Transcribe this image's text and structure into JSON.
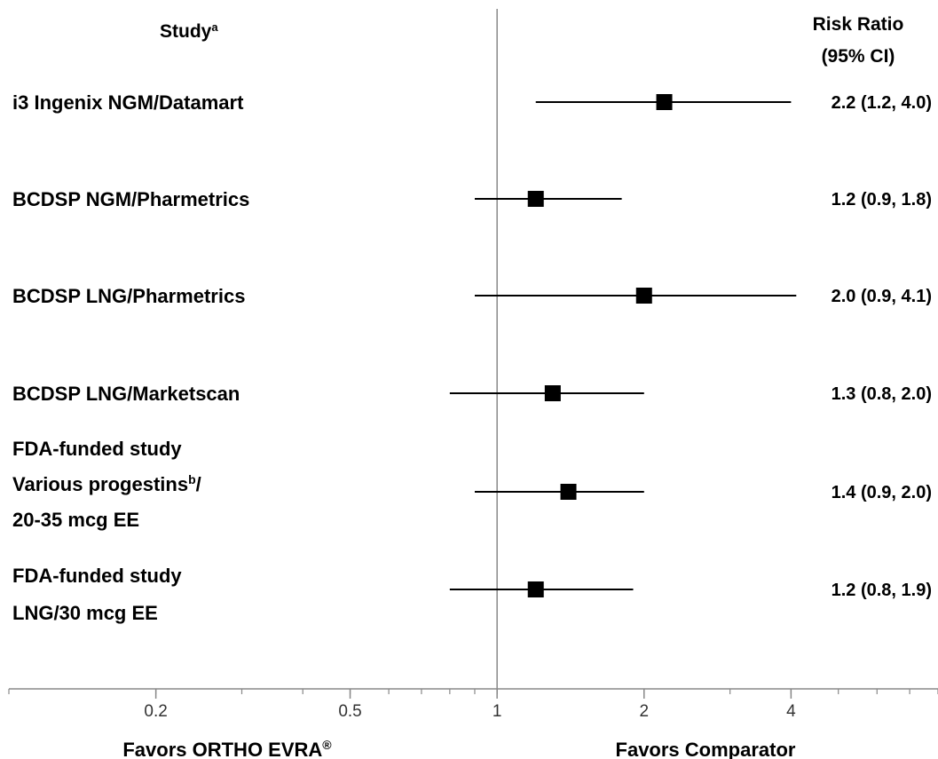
{
  "chart_data": {
    "type": "scatter",
    "subtype": "forest-plot",
    "x_scale": "log",
    "xlim": [
      0.1,
      8
    ],
    "reference_line": 1,
    "grid": false,
    "x_ticks": [
      {
        "value": 0.2,
        "label": "0.2"
      },
      {
        "value": 0.5,
        "label": "0.5"
      },
      {
        "value": 1,
        "label": "1"
      },
      {
        "value": 2,
        "label": "2"
      },
      {
        "value": 4,
        "label": "4"
      }
    ],
    "headers": {
      "study": "Study",
      "study_sup": "a",
      "rr_line1": "Risk Ratio",
      "rr_line2": "(95% CI)"
    },
    "favors_left": "Favors ORTHO EVRA",
    "favors_left_sup": "®",
    "favors_right": "Favors Comparator",
    "studies": [
      {
        "label_lines": [
          "i3 Ingenix NGM/Datamart"
        ],
        "estimate": 2.2,
        "ci_low": 1.2,
        "ci_high": 4.0,
        "text": "2.2 (1.2, 4.0)"
      },
      {
        "label_lines": [
          "BCDSP NGM/Pharmetrics"
        ],
        "estimate": 1.2,
        "ci_low": 0.9,
        "ci_high": 1.8,
        "text": "1.2 (0.9, 1.8)"
      },
      {
        "label_lines": [
          "BCDSP LNG/Pharmetrics"
        ],
        "estimate": 2.0,
        "ci_low": 0.9,
        "ci_high": 4.1,
        "text": "2.0 (0.9, 4.1)"
      },
      {
        "label_lines": [
          "BCDSP LNG/Marketscan"
        ],
        "estimate": 1.3,
        "ci_low": 0.8,
        "ci_high": 2.0,
        "text": "1.3 (0.8, 2.0)"
      },
      {
        "label_lines": [
          "FDA-funded study",
          "Various progestins",
          "20-35 mcg EE"
        ],
        "sup": {
          "line": 1,
          "text": "b",
          "after": "/"
        },
        "estimate": 1.4,
        "ci_low": 0.9,
        "ci_high": 2.0,
        "text": "1.4 (0.9, 2.0)"
      },
      {
        "label_lines": [
          "FDA-funded study",
          "LNG/30 mcg EE"
        ],
        "estimate": 1.2,
        "ci_low": 0.8,
        "ci_high": 1.9,
        "text": "1.2 (0.8, 1.9)"
      }
    ]
  }
}
